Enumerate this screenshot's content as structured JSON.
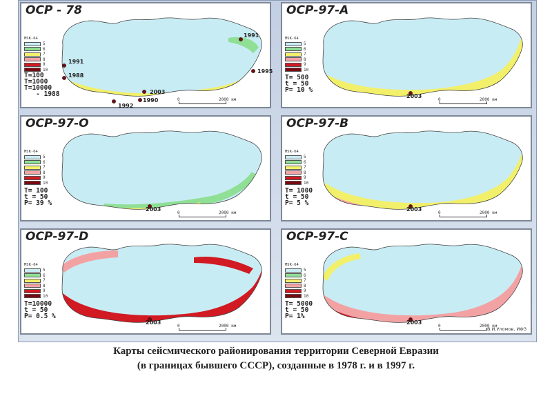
{
  "panels": [
    {
      "title": "ОСР - 78",
      "params": [
        "T=100",
        "T=1000",
        "T=10000"
      ],
      "extra_legend": "- 1988",
      "years": [
        "1991",
        "1991",
        "1988",
        "1995",
        "2003",
        "1990",
        "1992"
      ]
    },
    {
      "title": "ОСР-97-А",
      "params": [
        "T= 500",
        "t = 50",
        "P= 10 %"
      ],
      "years": [
        "2003"
      ]
    },
    {
      "title": "ОСР-97-О",
      "params": [
        "T= 100",
        "t = 50",
        "P= 39 %"
      ],
      "years": [
        "2003"
      ]
    },
    {
      "title": "ОСР-97-В",
      "params": [
        "T= 1000",
        "t = 50",
        "P= 5 %"
      ],
      "years": [
        "2003"
      ]
    },
    {
      "title": "ОСР-97-D",
      "params": [
        "T=10000",
        "t = 50",
        "P= 0.5 %"
      ],
      "years": [
        "2003"
      ]
    },
    {
      "title": "ОСР-97-С",
      "params": [
        "T= 5000",
        "t = 50",
        "P= 1%"
      ],
      "years": [
        "2003"
      ]
    }
  ],
  "legend": {
    "header": "MSK-64",
    "intensities": [
      "5",
      "6",
      "7",
      "8",
      "9",
      "10"
    ],
    "colors": {
      "5": "#c8ecf4",
      "6": "#8fdf95",
      "7": "#f2f06a",
      "8": "#f3a2a4",
      "9": "#d21a22",
      "10": "#7a0a12"
    }
  },
  "scale": {
    "start": "0",
    "end": "2000 км"
  },
  "credit": "В.И.Уломов, ИФЗ",
  "caption": {
    "line1": "Карты сейсмического районирования территории Северной Евразии",
    "line2": "(в границах бывшего СССР), созданные в 1978 г. и в 1997 г."
  }
}
